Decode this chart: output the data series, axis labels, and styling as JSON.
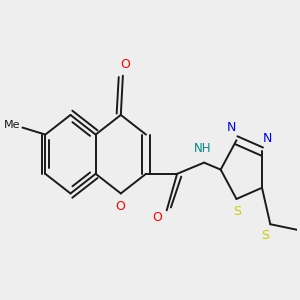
{
  "background_color": "#eeeeee",
  "bond_color": "#1a1a1a",
  "atom_colors": {
    "O": "#ff0000",
    "N": "#0000ee",
    "S": "#cccc00",
    "NH": "#008888",
    "C": "#1a1a1a"
  },
  "figsize": [
    3.0,
    3.0
  ],
  "dpi": 100
}
